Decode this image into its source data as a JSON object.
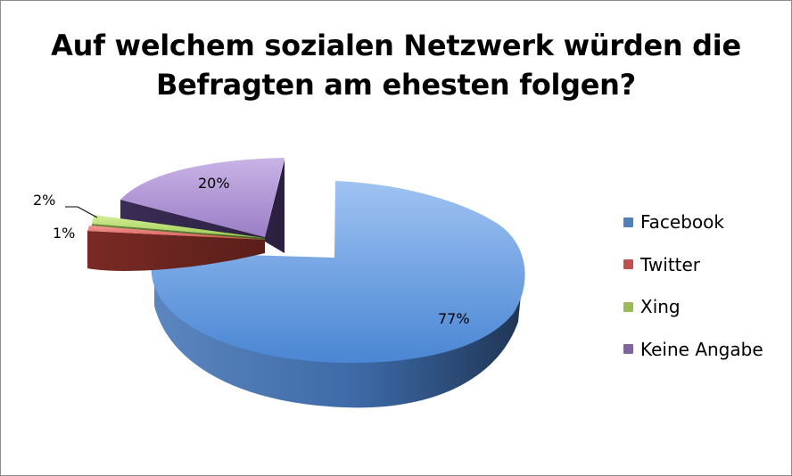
{
  "chart_data": {
    "type": "pie",
    "title_lines": [
      "Auf welchem sozialen Netzwerk würden die",
      "Befragten am ehesten folgen?"
    ],
    "categories": [
      "Facebook",
      "Twitter",
      "Xing",
      "Keine Angabe"
    ],
    "values": [
      77,
      1,
      2,
      20
    ],
    "data_labels": [
      "77%",
      "1%",
      "2%",
      "20%"
    ],
    "colors": [
      "#4f81bd",
      "#c0504d",
      "#9bbb59",
      "#8064a2"
    ],
    "legend_position": "right",
    "style": "3d-exploded"
  }
}
